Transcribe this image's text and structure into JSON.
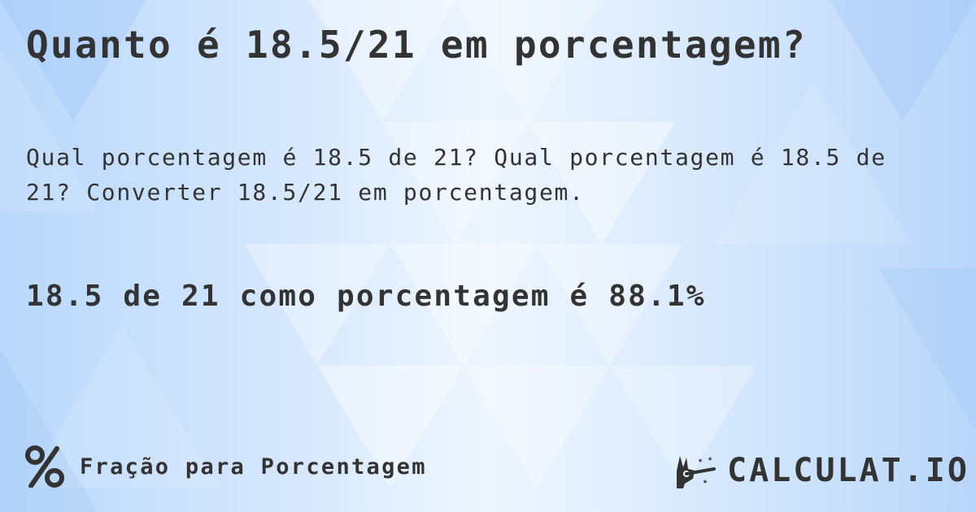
{
  "title": "Quanto é 18.5/21 em porcentagem?",
  "description": "Qual porcentagem é 18.5 de 21? Qual porcentagem é 18.5 de 21? Converter 18.5/21 em porcentagem.",
  "result": "18.5 de 21 como porcentagem é 88.1%",
  "footer": {
    "icon": "percent-icon",
    "label": "Fração para Porcentagem"
  },
  "logo": {
    "icon": "magic-hand-icon",
    "text": "CALCULAT.IO"
  },
  "colors": {
    "text": "#333333",
    "background": "#cfe4fc"
  }
}
